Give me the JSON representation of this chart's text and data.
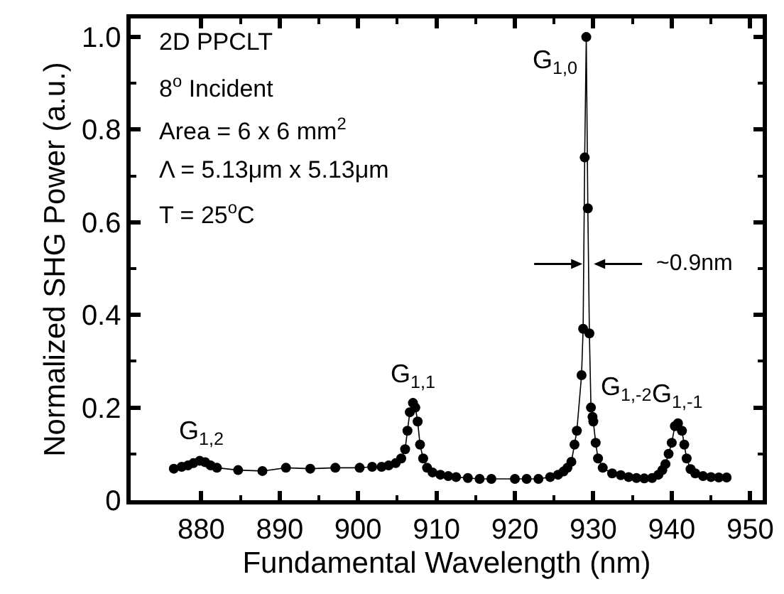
{
  "chart_data": {
    "type": "line",
    "xlabel": "Fundamental Wavelength (nm)",
    "ylabel": "Normalized SHG Power (a.u.)",
    "xlim": [
      871,
      951.6
    ],
    "ylim": [
      0,
      1.04
    ],
    "xticks": [
      880,
      890,
      900,
      910,
      920,
      930,
      940,
      950
    ],
    "yticks": [
      0,
      {
        "value": 0.2,
        "label": "0.2"
      },
      {
        "value": 0.4,
        "label": "0.4"
      },
      {
        "value": 0.6,
        "label": "0.6"
      },
      {
        "value": 0.8,
        "label": "0.8"
      },
      {
        "value": 1,
        "label": "1.0"
      }
    ],
    "marker": "circle",
    "line_style": "solid",
    "series": [
      {
        "color": "#000000",
        "x": [
          876.5,
          877.5,
          878.3,
          879,
          879.8,
          880.5,
          881.2,
          882,
          884.7,
          887.8,
          890.8,
          893.9,
          897.1,
          900.2,
          901.8,
          903,
          903.9,
          904.8,
          905.5,
          906,
          906.3,
          906.6,
          907,
          907.3,
          907.6,
          907.9,
          908.3,
          908.8,
          909.5,
          910.5,
          911.5,
          912.5,
          914,
          915.5,
          917,
          920,
          921.5,
          923,
          924.5,
          925.5,
          926.2,
          926.7,
          927.2,
          927.6,
          927.9,
          928.5,
          928.7,
          928.9,
          929.1,
          929.3,
          929.5,
          929.7,
          929.9,
          930,
          930.3,
          930.6,
          931.2,
          932.4,
          933.5,
          934.5,
          935.5,
          936.5,
          937.5,
          938.3,
          938.8,
          939.2,
          939.6,
          940,
          940.4,
          940.8,
          941.3,
          941.6,
          941.9,
          942.4,
          943,
          944,
          945,
          946,
          947
        ],
        "values": [
          0.068,
          0.072,
          0.075,
          0.08,
          0.085,
          0.082,
          0.075,
          0.07,
          0.065,
          0.063,
          0.07,
          0.068,
          0.07,
          0.07,
          0.072,
          0.072,
          0.075,
          0.08,
          0.09,
          0.11,
          0.15,
          0.19,
          0.21,
          0.2,
          0.17,
          0.12,
          0.09,
          0.07,
          0.06,
          0.055,
          0.052,
          0.05,
          0.048,
          0.046,
          0.046,
          0.046,
          0.046,
          0.046,
          0.05,
          0.055,
          0.062,
          0.07,
          0.083,
          0.12,
          0.15,
          0.27,
          0.37,
          0.74,
          1.0,
          0.63,
          0.36,
          0.2,
          0.18,
          0.17,
          0.124,
          0.09,
          0.07,
          0.058,
          0.054,
          0.05,
          0.048,
          0.047,
          0.048,
          0.055,
          0.065,
          0.078,
          0.1,
          0.124,
          0.16,
          0.166,
          0.15,
          0.12,
          0.09,
          0.067,
          0.058,
          0.052,
          0.05,
          0.049,
          0.049
        ]
      }
    ],
    "annotations": [
      "2D PPCLT",
      "8$^{o}$ Incident",
      "Area = 6 x 6 mm$^{2}$",
      "Λ = 5.13μm x 5.13μm",
      "T = 25$^{o}$C",
      {
        "text": "G$_{1,0}$",
        "x": 929.1,
        "y": 1.0
      },
      {
        "text": "G$_{1,1}$",
        "x": 907,
        "y": 0.21
      },
      {
        "text": "G$_{1,2}$",
        "x": 880,
        "y": 0.085
      },
      {
        "text": "G$_{1,-2}$",
        "x": 929.7,
        "y": 0.2
      },
      {
        "text": "G$_{1,-1}$",
        "x": 940.8,
        "y": 0.166
      },
      {
        "text": "~0.9nm",
        "x": 929.7,
        "y": 0.51
      }
    ]
  }
}
